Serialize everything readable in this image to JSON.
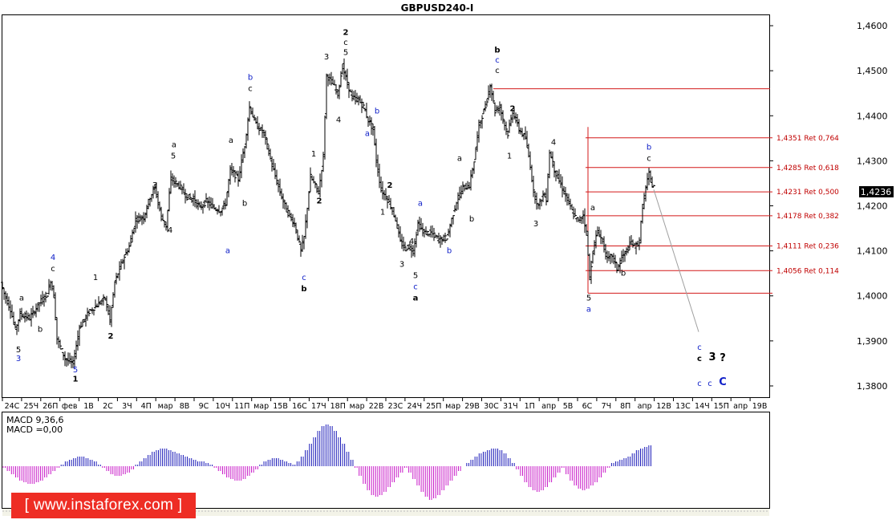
{
  "chart_data": {
    "type": "ohlc",
    "title": "GBPUSD240-I",
    "price_axis": {
      "ticks": [
        "1,4600",
        "1,4500",
        "1,4400",
        "1,4300",
        "1,4200",
        "1,4100",
        "1,4000",
        "1,3900",
        "1,3800"
      ],
      "tick_values": [
        1.46,
        1.45,
        1.44,
        1.43,
        1.42,
        1.41,
        1.4,
        1.39,
        1.38
      ],
      "ylim": [
        1.3775,
        1.4625
      ],
      "current_price_label": "1,4236",
      "current_price": 1.4236
    },
    "time_axis": {
      "labels": [
        "24С",
        "25Ч",
        "26П",
        "фев",
        "1В",
        "2С",
        "3Ч",
        "4П",
        "мар",
        "8В",
        "9С",
        "10Ч",
        "11П",
        "мар",
        "15В",
        "16С",
        "17Ч",
        "18П",
        "мар",
        "22В",
        "23С",
        "24Ч",
        "25П",
        "мар",
        "29В",
        "30С",
        "31Ч",
        "1П",
        "апр",
        "5В",
        "6С",
        "7Ч",
        "8П",
        "апр",
        "12В",
        "13С",
        "14Ч",
        "15П",
        "апр",
        "19В"
      ]
    },
    "price_path": [
      [
        0,
        1.403
      ],
      [
        4,
        1.4005
      ],
      [
        12,
        1.397
      ],
      [
        18,
        1.3925
      ],
      [
        24,
        1.396
      ],
      [
        36,
        1.395
      ],
      [
        48,
        1.3985
      ],
      [
        58,
        1.4005
      ],
      [
        62,
        1.4035
      ],
      [
        66,
        1.4
      ],
      [
        70,
        1.3905
      ],
      [
        80,
        1.386
      ],
      [
        90,
        1.385
      ],
      [
        98,
        1.393
      ],
      [
        110,
        1.3965
      ],
      [
        120,
        1.398
      ],
      [
        130,
        1.3995
      ],
      [
        136,
        1.3945
      ],
      [
        142,
        1.403
      ],
      [
        152,
        1.408
      ],
      [
        160,
        1.411
      ],
      [
        168,
        1.417
      ],
      [
        178,
        1.4175
      ],
      [
        186,
        1.422
      ],
      [
        192,
        1.424
      ],
      [
        200,
        1.4175
      ],
      [
        206,
        1.4155
      ],
      [
        212,
        1.426
      ],
      [
        222,
        1.4245
      ],
      [
        232,
        1.422
      ],
      [
        240,
        1.4215
      ],
      [
        248,
        1.4195
      ],
      [
        256,
        1.421
      ],
      [
        266,
        1.4195
      ],
      [
        274,
        1.419
      ],
      [
        280,
        1.4205
      ],
      [
        286,
        1.428
      ],
      [
        296,
        1.426
      ],
      [
        304,
        1.4335
      ],
      [
        310,
        1.442
      ],
      [
        318,
        1.438
      ],
      [
        328,
        1.436
      ],
      [
        338,
        1.429
      ],
      [
        348,
        1.423
      ],
      [
        356,
        1.419
      ],
      [
        366,
        1.416
      ],
      [
        374,
        1.41
      ],
      [
        378,
        1.413
      ],
      [
        386,
        1.4265
      ],
      [
        396,
        1.423
      ],
      [
        402,
        1.431
      ],
      [
        406,
        1.449
      ],
      [
        414,
        1.447
      ],
      [
        420,
        1.445
      ],
      [
        426,
        1.451
      ],
      [
        432,
        1.447
      ],
      [
        438,
        1.444
      ],
      [
        446,
        1.4435
      ],
      [
        452,
        1.442
      ],
      [
        458,
        1.439
      ],
      [
        464,
        1.437
      ],
      [
        468,
        1.43
      ],
      [
        474,
        1.4235
      ],
      [
        480,
        1.422
      ],
      [
        486,
        1.42
      ],
      [
        492,
        1.417
      ],
      [
        498,
        1.412
      ],
      [
        504,
        1.4105
      ],
      [
        508,
        1.411
      ],
      [
        514,
        1.41
      ],
      [
        520,
        1.416
      ],
      [
        528,
        1.414
      ],
      [
        536,
        1.414
      ],
      [
        546,
        1.4125
      ],
      [
        556,
        1.413
      ],
      [
        562,
        1.417
      ],
      [
        568,
        1.421
      ],
      [
        576,
        1.424
      ],
      [
        584,
        1.4245
      ],
      [
        590,
        1.43
      ],
      [
        596,
        1.438
      ],
      [
        604,
        1.442
      ],
      [
        610,
        1.447
      ],
      [
        616,
        1.441
      ],
      [
        622,
        1.442
      ],
      [
        628,
        1.438
      ],
      [
        632,
        1.436
      ],
      [
        638,
        1.441
      ],
      [
        646,
        1.437
      ],
      [
        654,
        1.435
      ],
      [
        660,
        1.429
      ],
      [
        664,
        1.423
      ],
      [
        670,
        1.42
      ],
      [
        676,
        1.4225
      ],
      [
        680,
        1.4215
      ],
      [
        684,
        1.432
      ],
      [
        690,
        1.428
      ],
      [
        696,
        1.4255
      ],
      [
        702,
        1.423
      ],
      [
        708,
        1.4205
      ],
      [
        714,
        1.418
      ],
      [
        720,
        1.4165
      ],
      [
        726,
        1.418
      ],
      [
        730,
        1.414
      ],
      [
        734,
        1.404
      ],
      [
        738,
        1.41
      ],
      [
        744,
        1.4145
      ],
      [
        750,
        1.412
      ],
      [
        756,
        1.408
      ],
      [
        762,
        1.409
      ],
      [
        768,
        1.406
      ],
      [
        774,
        1.4085
      ],
      [
        780,
        1.41
      ],
      [
        786,
        1.412
      ],
      [
        790,
        1.411
      ],
      [
        796,
        1.412
      ],
      [
        800,
        1.42
      ],
      [
        804,
        1.424
      ],
      [
        808,
        1.427
      ],
      [
        812,
        1.4245
      ]
    ],
    "retracement_levels": [
      {
        "label": "1,4351 Ret 0,764",
        "value": 1.4351
      },
      {
        "label": "1,4285 Ret 0,618",
        "value": 1.4285
      },
      {
        "label": "1,4231 Ret 0,500",
        "value": 1.4231
      },
      {
        "label": "1,4178 Ret 0,382",
        "value": 1.4178
      },
      {
        "label": "1,4111 Ret 0,236",
        "value": 1.4111
      },
      {
        "label": "1,4056 Ret 0,114",
        "value": 1.4056
      }
    ],
    "horizontal_lines": [
      {
        "value": 1.446
      },
      {
        "value": 1.4006
      }
    ],
    "wave_labels": [
      {
        "text": "5",
        "price": 1.3875,
        "t": 20,
        "color": "black"
      },
      {
        "text": "3",
        "price": 1.3855,
        "t": 20,
        "color": "blue"
      },
      {
        "text": "a",
        "price": 1.399,
        "t": 24,
        "color": "black"
      },
      {
        "text": "b",
        "price": 1.392,
        "t": 47,
        "color": "black"
      },
      {
        "text": "4",
        "price": 1.408,
        "t": 63,
        "color": "blue"
      },
      {
        "text": "c",
        "price": 1.4055,
        "t": 63,
        "color": "black"
      },
      {
        "text": "5",
        "price": 1.383,
        "t": 91,
        "color": "blue"
      },
      {
        "text": "1",
        "price": 1.381,
        "t": 91,
        "color": "black"
      },
      {
        "text": "1",
        "price": 1.4035,
        "t": 116,
        "color": "black"
      },
      {
        "text": "2",
        "price": 1.3905,
        "t": 135,
        "color": "black"
      },
      {
        "text": "3",
        "price": 1.424,
        "t": 190,
        "color": "black"
      },
      {
        "text": "a",
        "price": 1.433,
        "t": 214,
        "color": "black"
      },
      {
        "text": "5",
        "price": 1.4305,
        "t": 213,
        "color": "black"
      },
      {
        "text": "4",
        "price": 1.414,
        "t": 209,
        "color": "black"
      },
      {
        "text": "a",
        "price": 1.434,
        "t": 285,
        "color": "black"
      },
      {
        "text": "b",
        "price": 1.42,
        "t": 302,
        "color": "black"
      },
      {
        "text": "a",
        "price": 1.4095,
        "t": 281,
        "color": "blue"
      },
      {
        "text": "b",
        "price": 1.448,
        "t": 309,
        "color": "blue"
      },
      {
        "text": "c",
        "price": 1.4455,
        "t": 309,
        "color": "black"
      },
      {
        "text": "c",
        "price": 1.4035,
        "t": 376,
        "color": "blue"
      },
      {
        "text": "b",
        "price": 1.401,
        "t": 376,
        "color": "black"
      },
      {
        "text": "1",
        "price": 1.431,
        "t": 388,
        "color": "black"
      },
      {
        "text": "2",
        "price": 1.4205,
        "t": 395,
        "color": "black"
      },
      {
        "text": "3",
        "price": 1.4525,
        "t": 404,
        "color": "black"
      },
      {
        "text": "4",
        "price": 1.4385,
        "t": 419,
        "color": "black"
      },
      {
        "text": "2",
        "price": 1.458,
        "t": 428,
        "color": "black"
      },
      {
        "text": "c",
        "price": 1.4557,
        "t": 428,
        "color": "black"
      },
      {
        "text": "5",
        "price": 1.4535,
        "t": 428,
        "color": "black"
      },
      {
        "text": "b",
        "price": 1.4405,
        "t": 467,
        "color": "blue"
      },
      {
        "text": "a",
        "price": 1.4355,
        "t": 455,
        "color": "blue"
      },
      {
        "text": "2",
        "price": 1.424,
        "t": 483,
        "color": "black"
      },
      {
        "text": "1",
        "price": 1.418,
        "t": 474,
        "color": "black"
      },
      {
        "text": "3",
        "price": 1.4065,
        "t": 498,
        "color": "black"
      },
      {
        "text": "4",
        "price": 1.4115,
        "t": 510,
        "color": "black"
      },
      {
        "text": "5",
        "price": 1.404,
        "t": 515,
        "color": "black"
      },
      {
        "text": "c",
        "price": 1.4015,
        "t": 515,
        "color": "blue"
      },
      {
        "text": "a",
        "price": 1.399,
        "t": 515,
        "color": "black"
      },
      {
        "text": "a",
        "price": 1.42,
        "t": 521,
        "color": "blue"
      },
      {
        "text": "b",
        "price": 1.4095,
        "t": 557,
        "color": "blue"
      },
      {
        "text": "a",
        "price": 1.43,
        "t": 570,
        "color": "black"
      },
      {
        "text": "b",
        "price": 1.4165,
        "t": 585,
        "color": "black"
      },
      {
        "text": "b",
        "price": 1.454,
        "t": 617,
        "color": "black"
      },
      {
        "text": "c",
        "price": 1.4518,
        "t": 617,
        "color": "blue"
      },
      {
        "text": "c",
        "price": 1.4495,
        "t": 617,
        "color": "black"
      },
      {
        "text": "2",
        "price": 1.441,
        "t": 636,
        "color": "black"
      },
      {
        "text": "1",
        "price": 1.4305,
        "t": 632,
        "color": "black"
      },
      {
        "text": "3",
        "price": 1.4155,
        "t": 665,
        "color": "black"
      },
      {
        "text": "4",
        "price": 1.4335,
        "t": 687,
        "color": "black"
      },
      {
        "text": "a",
        "price": 1.419,
        "t": 736,
        "color": "black"
      },
      {
        "text": "5",
        "price": 1.399,
        "t": 731,
        "color": "black"
      },
      {
        "text": "a",
        "price": 1.3965,
        "t": 731,
        "color": "blue"
      },
      {
        "text": "b",
        "price": 1.4045,
        "t": 774,
        "color": "black"
      },
      {
        "text": "b",
        "price": 1.4325,
        "t": 806,
        "color": "blue"
      },
      {
        "text": "c",
        "price": 1.43,
        "t": 806,
        "color": "black"
      },
      {
        "text": "c",
        "price": 1.388,
        "t": 869,
        "color": "blue"
      },
      {
        "text": "c",
        "price": 1.3855,
        "t": 869,
        "color": "black"
      },
      {
        "text": "3",
        "price": 1.3857,
        "t": 885,
        "color": "black"
      },
      {
        "text": "?",
        "price": 1.3855,
        "t": 898,
        "color": "black"
      },
      {
        "text": "c",
        "price": 1.38,
        "t": 869,
        "color": "blue"
      },
      {
        "text": "c",
        "price": 1.38,
        "t": 882,
        "color": "blue"
      },
      {
        "text": "C",
        "price": 1.3802,
        "t": 898,
        "color": "blue"
      }
    ],
    "projection": {
      "from": [
        812,
        1.4236
      ],
      "to": [
        868,
        1.392
      ]
    },
    "macd": {
      "params_label": "MACD 9,36,6",
      "value_label": "MACD =0,00",
      "values": [
        -1,
        -3,
        -5,
        -7,
        -9,
        -10,
        -11,
        -11,
        -10,
        -9,
        -7,
        -5,
        -3,
        -1,
        1,
        3,
        4,
        5,
        6,
        6,
        5,
        4,
        3,
        1,
        -1,
        -3,
        -5,
        -6,
        -6,
        -5,
        -4,
        -2,
        1,
        3,
        5,
        7,
        9,
        10,
        11,
        11,
        10,
        9,
        8,
        7,
        6,
        5,
        4,
        3,
        3,
        2,
        1,
        -1,
        -3,
        -5,
        -7,
        -8,
        -9,
        -9,
        -8,
        -6,
        -4,
        -2,
        1,
        3,
        4,
        5,
        5,
        4,
        3,
        2,
        1,
        3,
        6,
        10,
        14,
        18,
        22,
        25,
        26,
        25,
        22,
        18,
        14,
        9,
        4,
        -1,
        -6,
        -11,
        -15,
        -18,
        -19,
        -18,
        -16,
        -13,
        -10,
        -7,
        -4,
        -1,
        -4,
        -8,
        -12,
        -16,
        -19,
        -21,
        -20,
        -18,
        -15,
        -12,
        -9,
        -6,
        -3,
        0,
        2,
        4,
        6,
        8,
        9,
        10,
        11,
        11,
        10,
        8,
        5,
        2,
        -2,
        -6,
        -10,
        -13,
        -15,
        -16,
        -15,
        -13,
        -10,
        -7,
        -4,
        -1,
        -5,
        -9,
        -12,
        -14,
        -15,
        -14,
        -12,
        -10,
        -7,
        -4,
        -1,
        2,
        3,
        4,
        5,
        6,
        8,
        10,
        11,
        12,
        13
      ]
    }
  },
  "watermark": "[  www.instaforex.com  ]"
}
